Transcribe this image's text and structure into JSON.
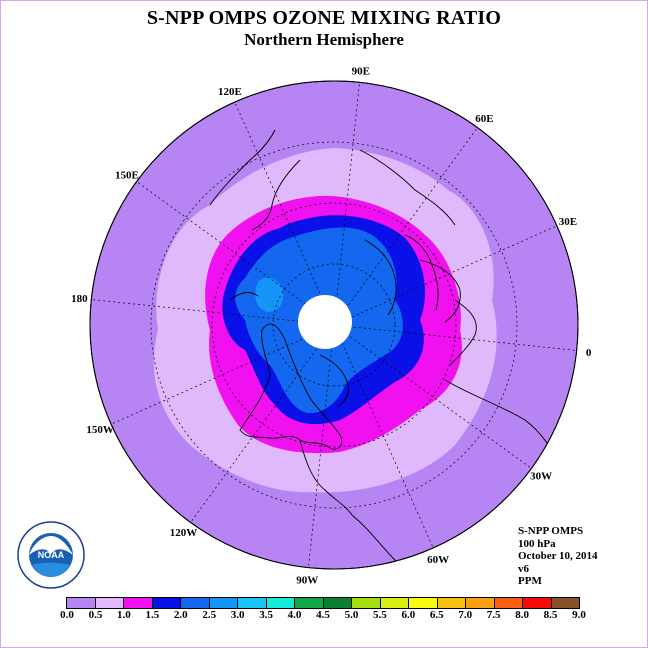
{
  "title": "S-NPP OMPS OZONE MIXING RATIO",
  "subtitle": "Northern Hemisphere",
  "longitude_labels": [
    "90E",
    "60E",
    "30E",
    "0",
    "30W",
    "60W",
    "90W",
    "120W",
    "150W",
    "180",
    "150E",
    "120E"
  ],
  "info": {
    "instrument": "S-NPP OMPS",
    "level": "100 hPa",
    "date": "October 10, 2014",
    "version": "v6",
    "units": "PPM"
  },
  "logo": {
    "name": "NOAA",
    "ring_text": "NATIONAL OCEANIC AND ATMOSPHERIC ADMINISTRATION · U.S. DEPARTMENT OF COMMERCE"
  },
  "colorbar": {
    "ticks": [
      "0.0",
      "0.5",
      "1.0",
      "1.5",
      "2.0",
      "2.5",
      "3.0",
      "3.5",
      "4.0",
      "4.5",
      "5.0",
      "5.5",
      "6.0",
      "6.5",
      "7.0",
      "7.5",
      "8.0",
      "8.5",
      "9.0"
    ],
    "colors": [
      "#b784f3",
      "#e0b8fc",
      "#f010f0",
      "#0a10e8",
      "#1468f0",
      "#1496f8",
      "#18c4f8",
      "#10ecd8",
      "#10a848",
      "#0a8030",
      "#a4e010",
      "#d8f010",
      "#f8f810",
      "#f8c010",
      "#f8a010",
      "#f86010",
      "#f80a0a",
      "#8a5028"
    ]
  },
  "ozone_field": {
    "levels": [
      "0.5",
      "1.0",
      "1.5",
      "2.0"
    ],
    "shown_band_colors": {
      "0.0-0.5": "#b784f3",
      "0.5-1.0": "#e0b8fc",
      "1.0-1.5": "#f010f0",
      "1.5-2.0": "#0a10e8",
      "2.0-2.5": "#1468f0"
    },
    "no_data_color": "#ffffff"
  }
}
